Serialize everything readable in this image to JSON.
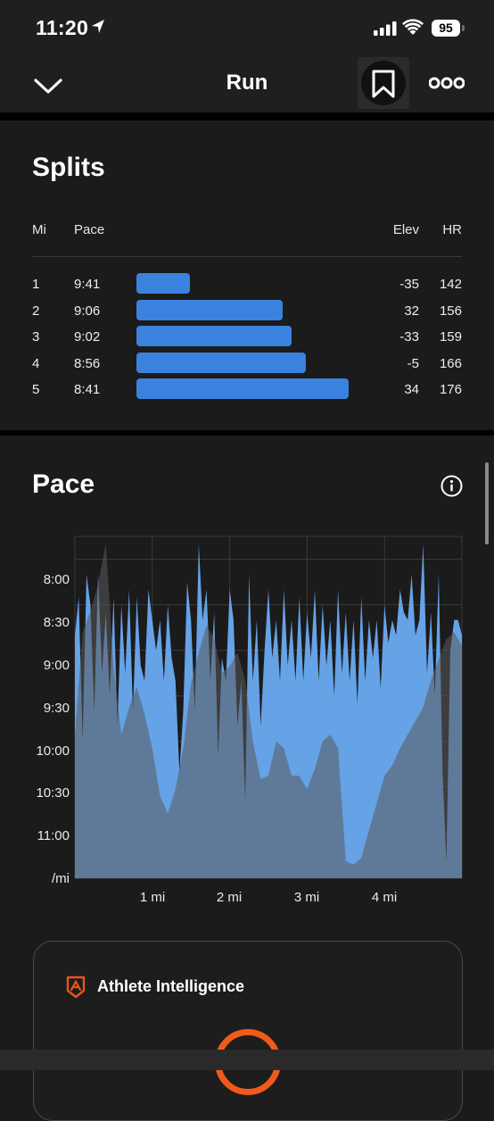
{
  "status": {
    "time": "11:20",
    "battery": "95"
  },
  "nav": {
    "title": "Run"
  },
  "splits": {
    "title": "Splits",
    "headers": {
      "mi": "Mi",
      "pace": "Pace",
      "elev": "Elev",
      "hr": "HR"
    },
    "rows": [
      {
        "mi": "1",
        "pace": "9:41",
        "elev": "-35",
        "hr": "142",
        "bar_fraction": 0.25
      },
      {
        "mi": "2",
        "pace": "9:06",
        "elev": "32",
        "hr": "156",
        "bar_fraction": 0.69
      },
      {
        "mi": "3",
        "pace": "9:02",
        "elev": "-33",
        "hr": "159",
        "bar_fraction": 0.73
      },
      {
        "mi": "4",
        "pace": "8:56",
        "elev": "-5",
        "hr": "166",
        "bar_fraction": 0.8
      },
      {
        "mi": "5",
        "pace": "8:41",
        "elev": "34",
        "hr": "176",
        "bar_fraction": 1.0
      }
    ]
  },
  "pace_chart": {
    "title": "Pace",
    "info_icon": "info-icon"
  },
  "chart_data": {
    "type": "area",
    "title": "Pace",
    "xlabel": "",
    "ylabel": "/mi",
    "x_ticks": [
      "1 mi",
      "2 mi",
      "3 mi",
      "4 mi"
    ],
    "y_ticks": [
      "8:00",
      "8:30",
      "9:00",
      "9:30",
      "10:00",
      "10:30",
      "11:00",
      "/mi"
    ],
    "xlim": [
      0,
      5.0
    ],
    "ylim_seconds_per_mi": [
      465,
      690
    ],
    "grid": true,
    "colors": {
      "pace": "#66a2e6",
      "elevation": "#3c3c3c"
    },
    "series": [
      {
        "role": "pace",
        "x": [
          0.0,
          0.05,
          0.1,
          0.15,
          0.2,
          0.25,
          0.3,
          0.35,
          0.4,
          0.45,
          0.5,
          0.55,
          0.6,
          0.65,
          0.7,
          0.75,
          0.8,
          0.85,
          0.9,
          0.95,
          1.0,
          1.05,
          1.1,
          1.15,
          1.2,
          1.25,
          1.3,
          1.35,
          1.4,
          1.45,
          1.5,
          1.55,
          1.6,
          1.65,
          1.7,
          1.75,
          1.8,
          1.85,
          1.9,
          1.95,
          2.0,
          2.05,
          2.1,
          2.15,
          2.2,
          2.25,
          2.3,
          2.35,
          2.4,
          2.45,
          2.5,
          2.55,
          2.6,
          2.65,
          2.7,
          2.75,
          2.8,
          2.85,
          2.9,
          2.95,
          3.0,
          3.05,
          3.1,
          3.15,
          3.2,
          3.25,
          3.3,
          3.35,
          3.4,
          3.45,
          3.5,
          3.55,
          3.6,
          3.65,
          3.7,
          3.75,
          3.8,
          3.85,
          3.9,
          3.95,
          4.0,
          4.05,
          4.1,
          4.15,
          4.2,
          4.25,
          4.3,
          4.35,
          4.4,
          4.45,
          4.5,
          4.55,
          4.6,
          4.65,
          4.7,
          4.75,
          4.8,
          4.85,
          4.9,
          4.95,
          5.0
        ],
        "seconds_per_mi": [
          530,
          505,
          600,
          490,
          510,
          580,
          490,
          555,
          515,
          570,
          505,
          590,
          510,
          555,
          500,
          580,
          505,
          550,
          560,
          500,
          520,
          540,
          520,
          560,
          510,
          545,
          560,
          620,
          580,
          495,
          520,
          580,
          470,
          520,
          500,
          560,
          515,
          610,
          545,
          560,
          500,
          520,
          590,
          560,
          640,
          490,
          560,
          520,
          590,
          540,
          500,
          545,
          520,
          560,
          500,
          550,
          520,
          560,
          505,
          560,
          515,
          545,
          500,
          560,
          510,
          550,
          520,
          570,
          500,
          555,
          515,
          560,
          520,
          575,
          505,
          560,
          520,
          545,
          520,
          565,
          510,
          535,
          520,
          530,
          500,
          515,
          520,
          490,
          530,
          520,
          470,
          555,
          515,
          570,
          490,
          620,
          680,
          540,
          520,
          520,
          530
        ]
      },
      {
        "role": "elevation",
        "x": [
          0.0,
          0.1,
          0.2,
          0.3,
          0.4,
          0.5,
          0.6,
          0.7,
          0.8,
          0.9,
          1.0,
          1.1,
          1.2,
          1.3,
          1.4,
          1.5,
          1.6,
          1.7,
          1.8,
          1.9,
          2.0,
          2.1,
          2.2,
          2.3,
          2.4,
          2.5,
          2.6,
          2.7,
          2.8,
          2.9,
          3.0,
          3.1,
          3.2,
          3.3,
          3.4,
          3.5,
          3.6,
          3.7,
          3.8,
          3.9,
          4.0,
          4.1,
          4.2,
          4.3,
          4.4,
          4.5,
          4.6,
          4.7,
          4.8,
          4.9,
          5.0
        ],
        "relative_elevation": [
          0.42,
          0.72,
          0.78,
          0.86,
          0.98,
          0.62,
          0.42,
          0.5,
          0.56,
          0.48,
          0.38,
          0.24,
          0.19,
          0.26,
          0.38,
          0.57,
          0.66,
          0.74,
          0.7,
          0.6,
          0.62,
          0.66,
          0.58,
          0.4,
          0.29,
          0.3,
          0.4,
          0.38,
          0.3,
          0.3,
          0.26,
          0.32,
          0.4,
          0.42,
          0.38,
          0.05,
          0.04,
          0.06,
          0.14,
          0.22,
          0.3,
          0.33,
          0.38,
          0.42,
          0.46,
          0.5,
          0.58,
          0.64,
          0.7,
          0.72,
          0.68
        ]
      }
    ]
  },
  "ai_card": {
    "title": "Athlete Intelligence"
  }
}
